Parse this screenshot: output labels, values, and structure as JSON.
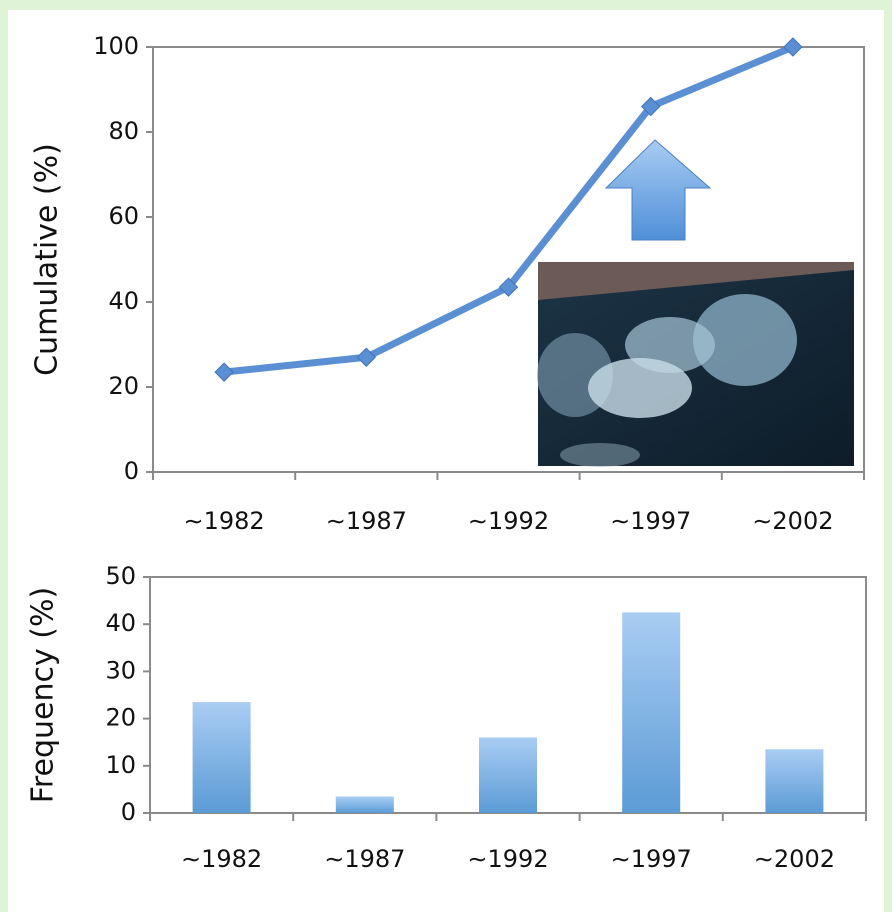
{
  "chart_data": [
    {
      "type": "line",
      "y_label": "Cumulative (%)",
      "categories": [
        "∼1982",
        "∼1987",
        "∼1992",
        "∼1997",
        "∼2002"
      ],
      "values": [
        23.5,
        27,
        43.5,
        86,
        100
      ],
      "color": "#5b8fd3",
      "ylim": [
        0,
        100
      ],
      "yticks": [
        0,
        20,
        40,
        60,
        80,
        100
      ]
    },
    {
      "type": "bar",
      "y_label": "Frequency (%)",
      "categories": [
        "∼1982",
        "∼1987",
        "∼1992",
        "∼1997",
        "∼2002"
      ],
      "values": [
        23.5,
        3.5,
        16,
        42.5,
        13.5
      ],
      "color": "#5b9bd5",
      "ylim": [
        0,
        50
      ],
      "yticks": [
        0,
        10,
        20,
        30,
        40,
        50
      ]
    }
  ]
}
